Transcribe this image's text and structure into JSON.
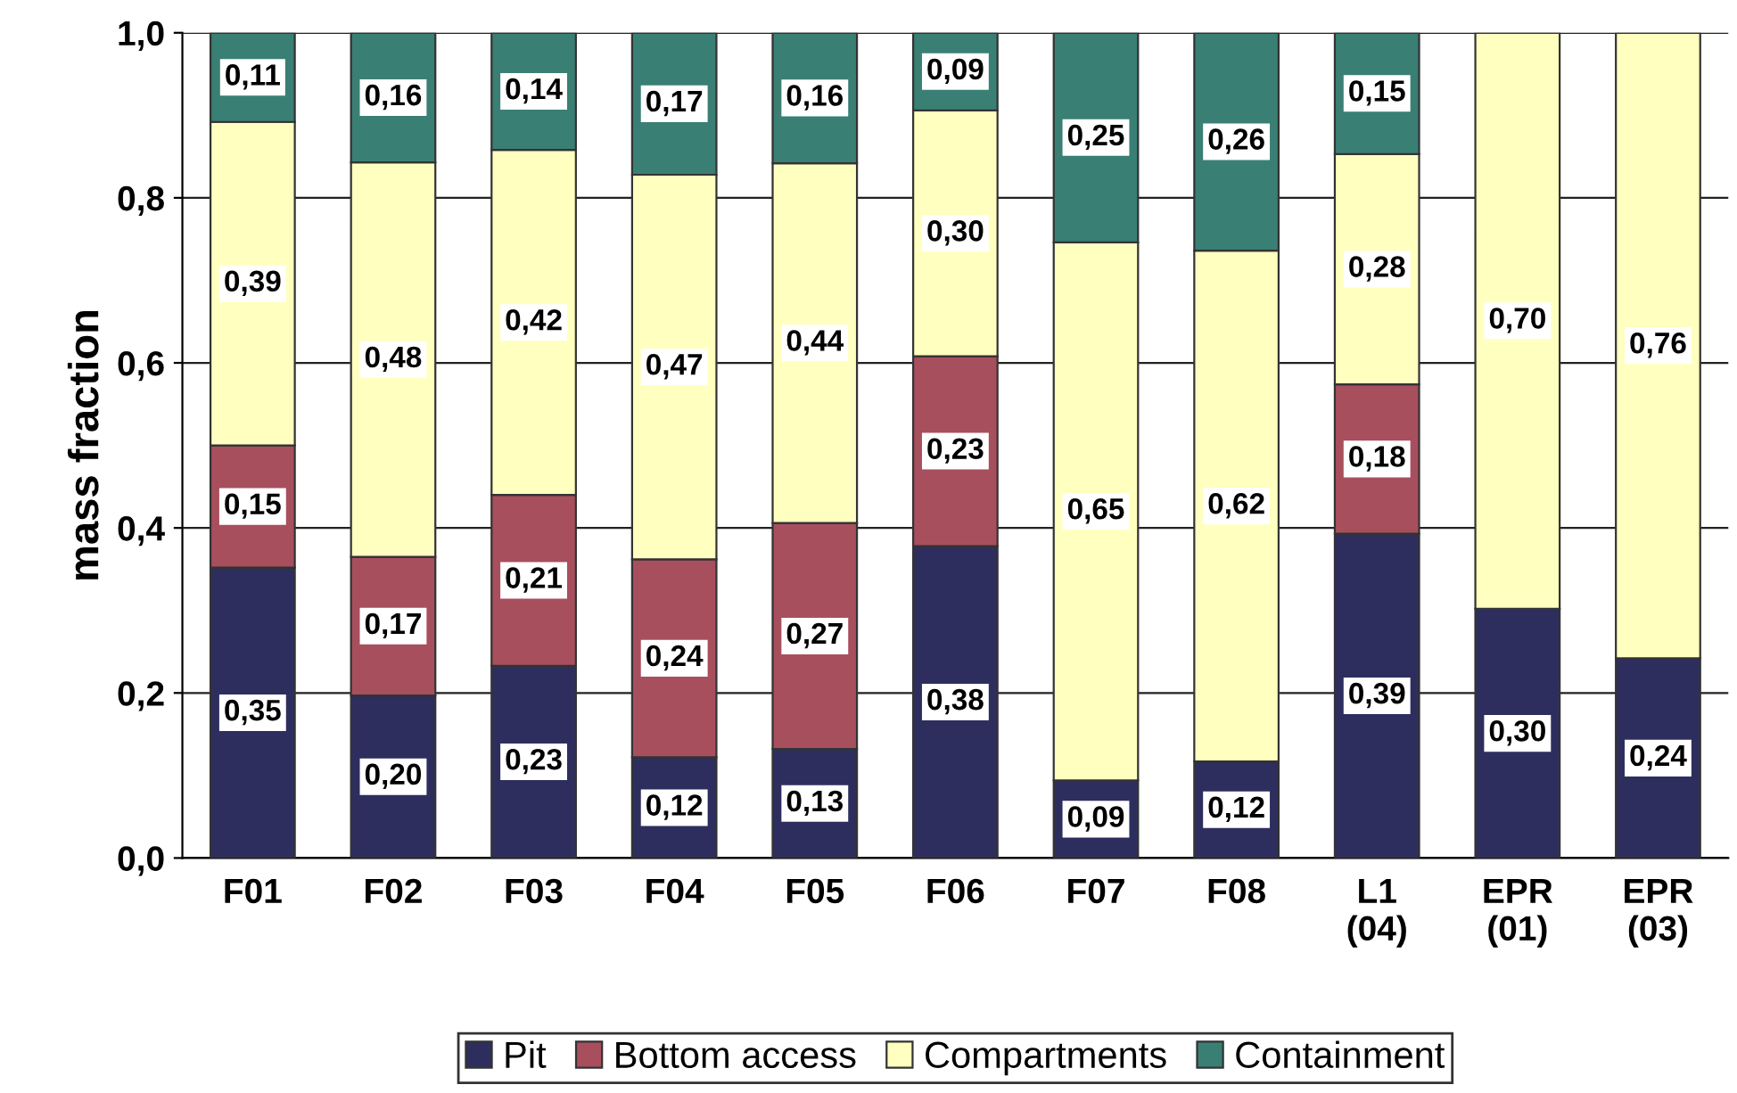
{
  "chart_data": {
    "type": "bar",
    "stacked": true,
    "ylabel": "mass fraction",
    "categories": [
      "F01",
      "F02",
      "F03",
      "F04",
      "F05",
      "F06",
      "F07",
      "F08",
      "L1\n(04)",
      "EPR\n(01)",
      "EPR\n(03)"
    ],
    "series": [
      {
        "name": "Pit",
        "color": "#2e2e5e",
        "values": [
          0.352,
          0.197,
          0.233,
          0.122,
          0.132,
          0.378,
          0.094,
          0.117,
          0.393,
          0.302,
          0.242
        ],
        "value_labels": [
          "0,35",
          "0,20",
          "0,23",
          "0,12",
          "0,13",
          "0,38",
          "0,09",
          "0,12",
          "0,39",
          "0,30",
          "0,24"
        ]
      },
      {
        "name": "Bottom access",
        "color": "#a84f5e",
        "values": [
          0.148,
          0.168,
          0.207,
          0.24,
          0.274,
          0.23,
          null,
          null,
          0.181,
          null,
          null
        ],
        "value_labels": [
          "0,15",
          "0,17",
          "0,21",
          "0,24",
          "0,27",
          "0,23",
          null,
          null,
          "0,18",
          null,
          null
        ]
      },
      {
        "name": "Compartments",
        "color": "#ffffc0",
        "values": [
          0.392,
          0.478,
          0.418,
          0.466,
          0.436,
          0.298,
          0.652,
          0.619,
          0.279,
          0.698,
          0.758
        ],
        "value_labels": [
          "0,39",
          "0,48",
          "0,42",
          "0,47",
          "0,44",
          "0,30",
          "0,65",
          "0,62",
          "0,28",
          "0,70",
          "0,76"
        ]
      },
      {
        "name": "Containment",
        "color": "#3a7f74",
        "values": [
          0.108,
          0.157,
          0.142,
          0.172,
          0.158,
          0.094,
          0.254,
          0.264,
          0.147,
          null,
          null
        ],
        "value_labels": [
          "0,11",
          "0,16",
          "0,14",
          "0,17",
          "0,16",
          "0,09",
          "0,25",
          "0,26",
          "0,15",
          null,
          null
        ]
      }
    ],
    "ylim": [
      0,
      1
    ],
    "yticks": [
      {
        "value": 0,
        "label": "0,0"
      },
      {
        "value": 0.2,
        "label": "0,2"
      },
      {
        "value": 0.4,
        "label": "0,4"
      },
      {
        "value": 0.6,
        "label": "0,6"
      },
      {
        "value": 0.8,
        "label": "0,8"
      },
      {
        "value": 1,
        "label": "1,0"
      }
    ],
    "grid": "y",
    "legend": "bottom"
  }
}
